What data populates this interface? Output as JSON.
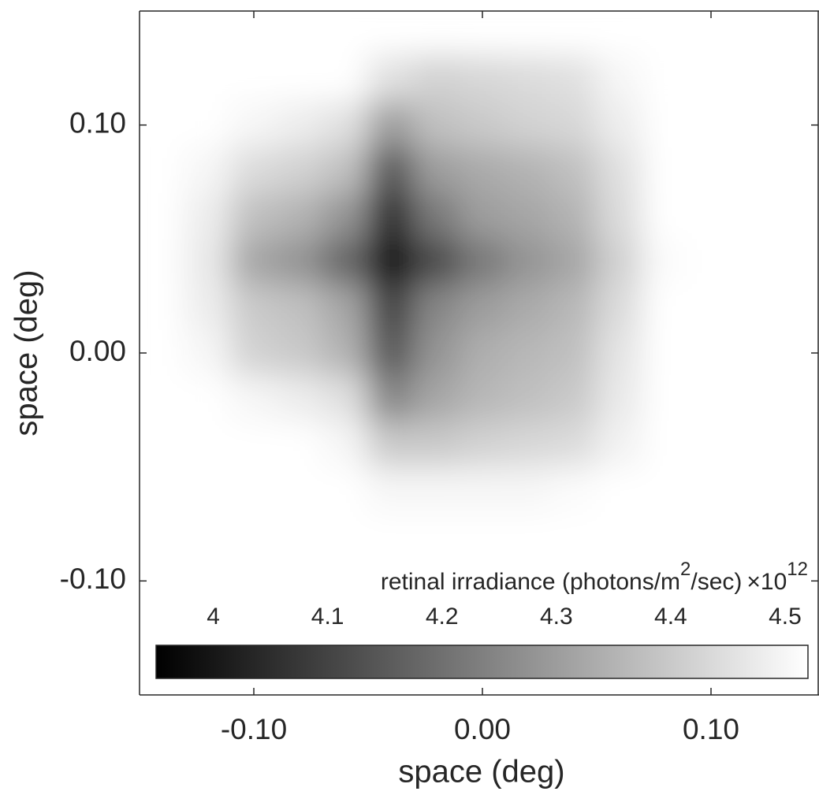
{
  "chart_data": {
    "type": "heatmap",
    "xlabel": "space (deg)",
    "ylabel": "space (deg)",
    "xlim": [
      -0.15,
      0.15
    ],
    "ylim": [
      -0.15,
      0.15
    ],
    "xticks": [
      {
        "value": -0.1,
        "label": "-0.10"
      },
      {
        "value": 0,
        "label": "0.00"
      },
      {
        "value": 0.1,
        "label": "0.10"
      }
    ],
    "yticks": [
      {
        "value": -0.1,
        "label": "-0.10"
      },
      {
        "value": 0,
        "label": "0.00"
      },
      {
        "value": 0.1,
        "label": "0.10"
      }
    ],
    "colormap": "gray",
    "x": [
      -0.12,
      -0.1,
      -0.08,
      -0.06,
      -0.04,
      -0.02,
      0,
      0.02,
      0.04,
      0.06,
      0.08,
      0.1,
      0.12
    ],
    "y": [
      0.12,
      0.1,
      0.08,
      0.06,
      0.04,
      0.02,
      0,
      -0.02,
      -0.04,
      -0.06,
      -0.08,
      -0.1,
      -0.12
    ],
    "z": [
      [
        4.52,
        4.52,
        4.52,
        4.52,
        4.45,
        4.42,
        4.43,
        4.44,
        4.45,
        4.5,
        4.52,
        4.52,
        4.52
      ],
      [
        4.52,
        4.5,
        4.48,
        4.45,
        4.3,
        4.38,
        4.4,
        4.42,
        4.43,
        4.48,
        4.52,
        4.52,
        4.52
      ],
      [
        4.5,
        4.44,
        4.42,
        4.38,
        4.15,
        4.3,
        4.33,
        4.35,
        4.38,
        4.45,
        4.52,
        4.52,
        4.52
      ],
      [
        4.48,
        4.38,
        4.35,
        4.28,
        4.05,
        4.22,
        4.3,
        4.32,
        4.35,
        4.44,
        4.52,
        4.52,
        4.52
      ],
      [
        4.47,
        4.32,
        4.28,
        4.18,
        3.97,
        4.12,
        4.22,
        4.28,
        4.32,
        4.42,
        4.51,
        4.52,
        4.52
      ],
      [
        4.48,
        4.4,
        4.38,
        4.32,
        4.1,
        4.25,
        4.3,
        4.33,
        4.36,
        4.44,
        4.52,
        4.52,
        4.52
      ],
      [
        4.5,
        4.42,
        4.4,
        4.35,
        4.15,
        4.28,
        4.34,
        4.36,
        4.38,
        4.46,
        4.52,
        4.52,
        4.52
      ],
      [
        4.52,
        4.5,
        4.48,
        4.45,
        4.25,
        4.32,
        4.36,
        4.38,
        4.4,
        4.47,
        4.52,
        4.52,
        4.52
      ],
      [
        4.52,
        4.52,
        4.52,
        4.5,
        4.4,
        4.4,
        4.42,
        4.43,
        4.44,
        4.49,
        4.52,
        4.52,
        4.52
      ],
      [
        4.52,
        4.52,
        4.52,
        4.52,
        4.5,
        4.5,
        4.5,
        4.5,
        4.51,
        4.52,
        4.52,
        4.52,
        4.52
      ],
      [
        4.52,
        4.52,
        4.52,
        4.52,
        4.52,
        4.52,
        4.52,
        4.52,
        4.52,
        4.52,
        4.52,
        4.52,
        4.52
      ],
      [
        4.52,
        4.52,
        4.52,
        4.52,
        4.52,
        4.52,
        4.52,
        4.52,
        4.52,
        4.52,
        4.52,
        4.52,
        4.52
      ],
      [
        4.52,
        4.52,
        4.52,
        4.52,
        4.52,
        4.52,
        4.52,
        4.52,
        4.52,
        4.52,
        4.52,
        4.52,
        4.52
      ]
    ],
    "colorbar": {
      "label": [
        "retinal irradiance (photons/m",
        "2",
        "/sec)"
      ],
      "multiplier": [
        "×10",
        "12"
      ],
      "clim": [
        3.95,
        4.52
      ],
      "ticks": [
        4,
        4.1,
        4.2,
        4.3,
        4.4,
        4.5
      ]
    }
  }
}
